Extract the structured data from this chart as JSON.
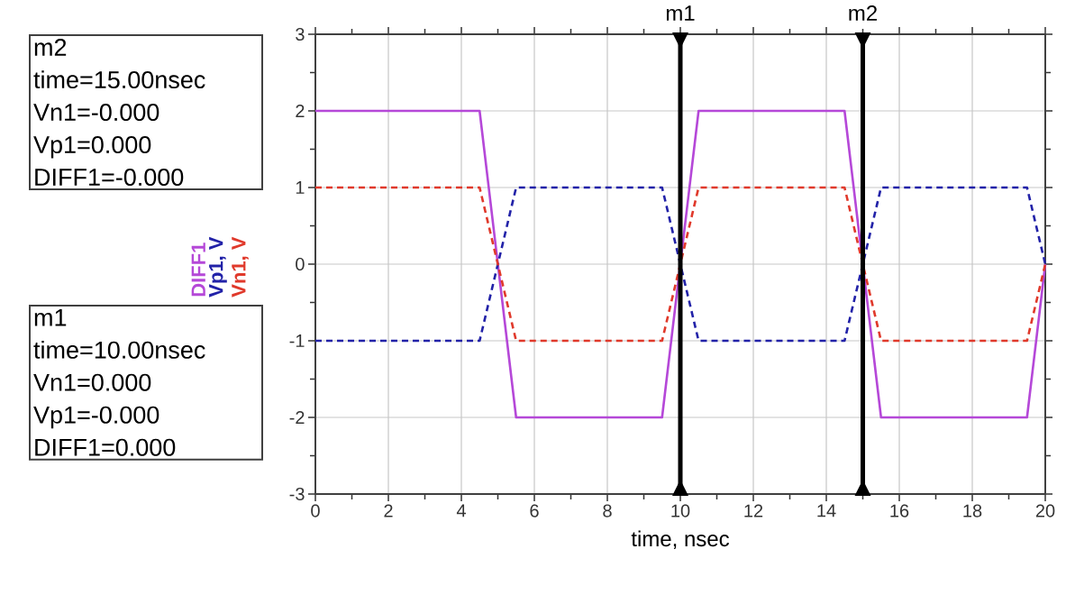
{
  "chart_data": {
    "type": "line",
    "xlabel": "time, nsec",
    "x": [
      0,
      4.5,
      5.5,
      9.5,
      10.5,
      14.5,
      15.5,
      19.5,
      20
    ],
    "series": [
      {
        "name": "DIFF1",
        "color": "#b548d8",
        "line_style": "solid",
        "values": [
          2,
          2,
          -2,
          -2,
          2,
          2,
          -2,
          -2,
          0
        ]
      },
      {
        "name": "Vp1, V",
        "color": "#2222a8",
        "line_style": "dashed",
        "values": [
          -1,
          -1,
          1,
          1,
          -1,
          -1,
          1,
          1,
          0
        ]
      },
      {
        "name": "Vn1, V",
        "color": "#e0392b",
        "line_style": "dashed",
        "values": [
          1,
          1,
          -1,
          -1,
          1,
          1,
          -1,
          -1,
          0
        ]
      }
    ],
    "xlim": [
      0,
      20
    ],
    "ylim": [
      -3,
      3
    ],
    "xticks": [
      0,
      2,
      4,
      6,
      8,
      10,
      12,
      14,
      16,
      18,
      20
    ],
    "yticks": [
      -3,
      -2,
      -1,
      0,
      1,
      2,
      3
    ],
    "grid": true,
    "ref_lines": [
      {
        "axis": "x",
        "value": 10,
        "label": "m1",
        "color": "#000000"
      },
      {
        "axis": "x",
        "value": 15,
        "label": "m2",
        "color": "#000000"
      }
    ],
    "annotations": [
      "m2",
      "time=15.00nsec",
      "Vn1=-0.000",
      "Vp1=0.000",
      "DIFF1=-0.000",
      "m1",
      "time=10.00nsec",
      "Vn1=0.000",
      "Vp1=-0.000",
      "DIFF1=0.000"
    ]
  }
}
